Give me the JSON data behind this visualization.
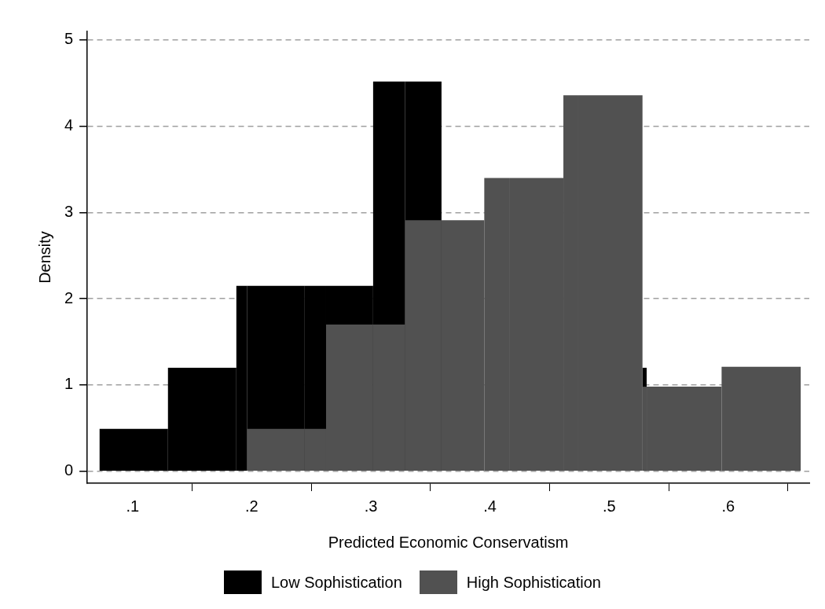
{
  "chart_data": {
    "type": "histogram",
    "xlabel": "Predicted Economic Conservatism",
    "ylabel": "Density",
    "bins": [
      0.0723,
      0.1297,
      0.1871,
      0.196,
      0.2445,
      0.2624,
      0.3019,
      0.3288,
      0.3593,
      0.3952,
      0.4167,
      0.4616,
      0.4741,
      0.528,
      0.5315,
      0.5944,
      0.6608
    ],
    "series": [
      {
        "name": "Low Sophistication",
        "color": "#000000",
        "values": [
          0.49,
          1.2,
          2.15,
          2.15,
          2.15,
          2.15,
          4.52,
          4.52,
          null,
          null,
          null,
          null,
          null,
          1.2,
          null,
          null
        ]
      },
      {
        "name": "High Sophistication",
        "color": "#515151",
        "values": [
          null,
          null,
          null,
          0.49,
          0.49,
          1.7,
          1.7,
          2.91,
          2.91,
          3.4,
          3.4,
          4.36,
          4.36,
          0.98,
          0.98,
          1.21
        ]
      }
    ],
    "xlim": [
      0.062,
      0.668
    ],
    "ylim": [
      -0.14,
      5.1
    ],
    "xticks": [
      {
        "value": 0.1,
        "label": ".1"
      },
      {
        "value": 0.2,
        "label": ".2"
      },
      {
        "value": 0.3,
        "label": ".3"
      },
      {
        "value": 0.4,
        "label": ".4"
      },
      {
        "value": 0.5,
        "label": ".5"
      },
      {
        "value": 0.6,
        "label": ".6"
      }
    ],
    "yticks": [
      0,
      1,
      2,
      3,
      4,
      5
    ],
    "grid": "y",
    "legend": "bottom"
  }
}
